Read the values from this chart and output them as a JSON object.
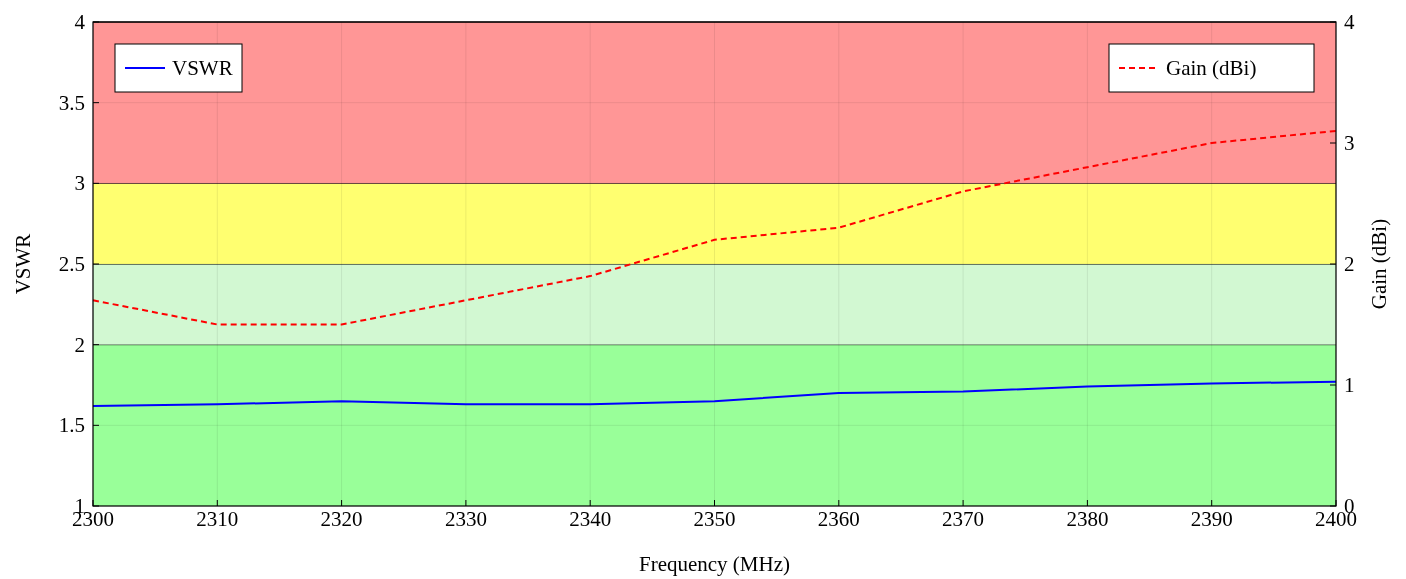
{
  "chart_data": {
    "type": "line",
    "xlabel": "Frequency (MHz)",
    "ylabel": "VSWR",
    "y2label": "Gain (dBi)",
    "x": [
      2300,
      2310,
      2320,
      2330,
      2340,
      2350,
      2360,
      2370,
      2380,
      2390,
      2400
    ],
    "series": [
      {
        "name": "VSWR",
        "color": "#0000ff",
        "line_style": "solid",
        "values": [
          1.62,
          1.63,
          1.65,
          1.63,
          1.63,
          1.65,
          1.7,
          1.71,
          1.74,
          1.76,
          1.77
        ]
      },
      {
        "name": "Gain (dBi)",
        "color": "#ff0000",
        "line_style": "dashed",
        "axis": "y2",
        "values": [
          1.7,
          1.5,
          1.5,
          1.7,
          1.9,
          2.2,
          2.3,
          2.6,
          2.8,
          3.0,
          3.1
        ]
      }
    ],
    "xlim": [
      2300,
      2400
    ],
    "xticks": [
      2300,
      2310,
      2320,
      2330,
      2340,
      2350,
      2360,
      2370,
      2380,
      2390,
      2400
    ],
    "ylim": [
      1,
      4
    ],
    "yticks": [
      1,
      1.5,
      2,
      2.5,
      3,
      3.5,
      4
    ],
    "y2lim": [
      0,
      4
    ],
    "y2ticks": [
      0,
      1,
      2,
      3,
      4
    ],
    "bands": [
      {
        "axis": "y",
        "from": 1,
        "to": 2,
        "color": "#99ff99"
      },
      {
        "axis": "y",
        "from": 2,
        "to": 2.5,
        "color": "#d2f8d2"
      },
      {
        "axis": "y",
        "from": 2.5,
        "to": 3,
        "color": "#ffff70"
      },
      {
        "axis": "y",
        "from": 3,
        "to": 4,
        "color": "#ff9696"
      }
    ],
    "grid": true,
    "legend": "top",
    "marker": "none"
  }
}
